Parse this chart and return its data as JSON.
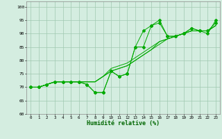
{
  "xlabel": "Humidité relative (%)",
  "bg_color": "#d4ede0",
  "grid_color": "#a0c8b0",
  "line_color": "#00aa00",
  "xlim": [
    -0.5,
    23.5
  ],
  "ylim": [
    60,
    102
  ],
  "yticks": [
    60,
    65,
    70,
    75,
    80,
    85,
    90,
    95,
    100
  ],
  "xticks": [
    0,
    1,
    2,
    3,
    4,
    5,
    6,
    7,
    8,
    9,
    10,
    11,
    12,
    13,
    14,
    15,
    16,
    17,
    18,
    19,
    20,
    21,
    22,
    23
  ],
  "series_plain": [
    [
      70,
      70,
      71,
      72,
      72,
      72,
      72,
      72,
      72,
      74,
      76,
      77,
      78,
      80,
      82,
      84,
      86,
      88,
      89,
      90,
      91,
      91,
      91,
      93
    ],
    [
      70,
      70,
      71,
      72,
      72,
      72,
      72,
      72,
      72,
      74,
      76,
      77,
      78,
      80,
      82,
      84,
      87,
      88,
      89,
      90,
      91,
      91,
      91,
      93
    ],
    [
      70,
      70,
      71,
      72,
      72,
      72,
      72,
      72,
      72,
      74,
      77,
      78,
      79,
      81,
      83,
      85,
      87,
      88,
      89,
      90,
      91,
      91,
      91,
      93
    ]
  ],
  "series_marked": [
    [
      70,
      70,
      71,
      72,
      72,
      72,
      72,
      71,
      68,
      68,
      76,
      74,
      75,
      85,
      85,
      93,
      94,
      89,
      89,
      90,
      92,
      91,
      91,
      94
    ],
    [
      70,
      70,
      71,
      72,
      72,
      72,
      72,
      71,
      68,
      68,
      76,
      74,
      75,
      85,
      91,
      93,
      95,
      89,
      89,
      90,
      92,
      91,
      90,
      95
    ]
  ]
}
